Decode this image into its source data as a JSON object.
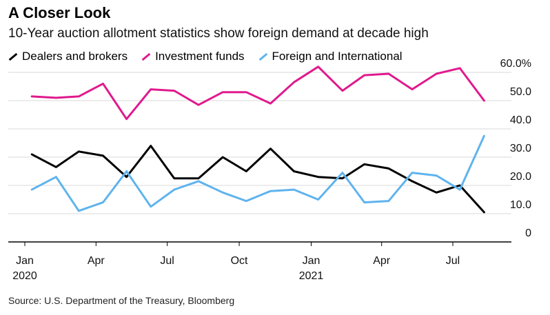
{
  "header": {
    "title": "A Closer Look",
    "subtitle": "10-Year auction allotment statistics show foreign demand at decade high"
  },
  "footer": {
    "source": "Source: U.S. Department of the Treasury, Bloomberg"
  },
  "colors": {
    "dealers": "#000000",
    "investment": "#e0198d",
    "foreign": "#5fb3ee",
    "grid": "#d9d9d9"
  },
  "chart_data": {
    "type": "line",
    "title": "A Closer Look",
    "subtitle": "10-Year auction allotment statistics show foreign demand at decade high",
    "x": [
      "2020-01",
      "2020-02",
      "2020-03",
      "2020-04",
      "2020-05",
      "2020-06",
      "2020-07",
      "2020-08",
      "2020-09",
      "2020-10",
      "2020-11",
      "2020-12",
      "2021-01",
      "2021-02",
      "2021-03",
      "2021-04",
      "2021-05",
      "2021-06",
      "2021-07",
      "2021-08"
    ],
    "x_tick_labels": [
      {
        "x": "2020-01",
        "label": "Jan",
        "year": "2020"
      },
      {
        "x": "2020-04",
        "label": "Apr",
        "year": ""
      },
      {
        "x": "2020-07",
        "label": "Jul",
        "year": ""
      },
      {
        "x": "2020-10",
        "label": "Oct",
        "year": ""
      },
      {
        "x": "2021-01",
        "label": "Jan",
        "year": "2021"
      },
      {
        "x": "2021-04",
        "label": "Apr",
        "year": ""
      },
      {
        "x": "2021-07",
        "label": "Jul",
        "year": ""
      }
    ],
    "y_ticks": [
      {
        "value": 0,
        "label": "0"
      },
      {
        "value": 10,
        "label": "10.0"
      },
      {
        "value": 20,
        "label": "20.0"
      },
      {
        "value": 30,
        "label": "30.0"
      },
      {
        "value": 40,
        "label": "40.0"
      },
      {
        "value": 50,
        "label": "50.0"
      },
      {
        "value": 60,
        "label": "60.0%"
      }
    ],
    "ylim": [
      0,
      60
    ],
    "grid": true,
    "legend_position": "top-left",
    "series": [
      {
        "name": "Dealers and brokers",
        "color": "#000000",
        "points": [
          [
            "2020-01-10",
            31
          ],
          [
            "2020-02-10",
            26.5
          ],
          [
            "2020-03-10",
            32
          ],
          [
            "2020-04-10",
            30.5
          ],
          [
            "2020-05-10",
            23
          ],
          [
            "2020-06-10",
            34
          ],
          [
            "2020-07-10",
            22.5
          ],
          [
            "2020-08-10",
            22.5
          ],
          [
            "2020-09-10",
            30
          ],
          [
            "2020-10-10",
            25
          ],
          [
            "2020-11-10",
            33
          ],
          [
            "2020-12-10",
            25
          ],
          [
            "2021-01-10",
            23
          ],
          [
            "2021-02-10",
            22.5
          ],
          [
            "2021-03-10",
            27.5
          ],
          [
            "2021-04-10",
            26
          ],
          [
            "2021-05-10",
            21.5
          ],
          [
            "2021-06-10",
            17.5
          ],
          [
            "2021-07-10",
            20
          ],
          [
            "2021-08-10",
            10.5
          ]
        ]
      },
      {
        "name": "Investment funds",
        "color": "#e0198d",
        "points": [
          [
            "2020-01-10",
            51.5
          ],
          [
            "2020-02-10",
            51
          ],
          [
            "2020-03-10",
            51.5
          ],
          [
            "2020-04-10",
            56
          ],
          [
            "2020-05-10",
            43.5
          ],
          [
            "2020-06-10",
            54
          ],
          [
            "2020-07-10",
            53.5
          ],
          [
            "2020-08-10",
            48.5
          ],
          [
            "2020-09-10",
            53
          ],
          [
            "2020-10-10",
            53
          ],
          [
            "2020-11-10",
            49
          ],
          [
            "2020-12-10",
            56.5
          ],
          [
            "2021-01-10",
            62
          ],
          [
            "2021-02-10",
            53.5
          ],
          [
            "2021-03-10",
            59
          ],
          [
            "2021-04-10",
            59.5
          ],
          [
            "2021-05-10",
            54
          ],
          [
            "2021-06-10",
            59.5
          ],
          [
            "2021-07-10",
            61.5
          ],
          [
            "2021-08-10",
            50
          ]
        ]
      },
      {
        "name": "Foreign and International",
        "color": "#5fb3ee",
        "points": [
          [
            "2020-01-10",
            18.5
          ],
          [
            "2020-02-10",
            23
          ],
          [
            "2020-03-10",
            11
          ],
          [
            "2020-04-10",
            14
          ],
          [
            "2020-05-10",
            25
          ],
          [
            "2020-06-10",
            12.5
          ],
          [
            "2020-07-10",
            18.5
          ],
          [
            "2020-08-10",
            21.5
          ],
          [
            "2020-09-10",
            17.5
          ],
          [
            "2020-10-10",
            14.5
          ],
          [
            "2020-11-10",
            18
          ],
          [
            "2020-12-10",
            18.5
          ],
          [
            "2021-01-10",
            15
          ],
          [
            "2021-02-10",
            24.5
          ],
          [
            "2021-03-10",
            14
          ],
          [
            "2021-04-10",
            14.5
          ],
          [
            "2021-05-10",
            24.5
          ],
          [
            "2021-06-10",
            23.5
          ],
          [
            "2021-07-10",
            18.5
          ],
          [
            "2021-08-10",
            37.5
          ]
        ]
      }
    ]
  }
}
